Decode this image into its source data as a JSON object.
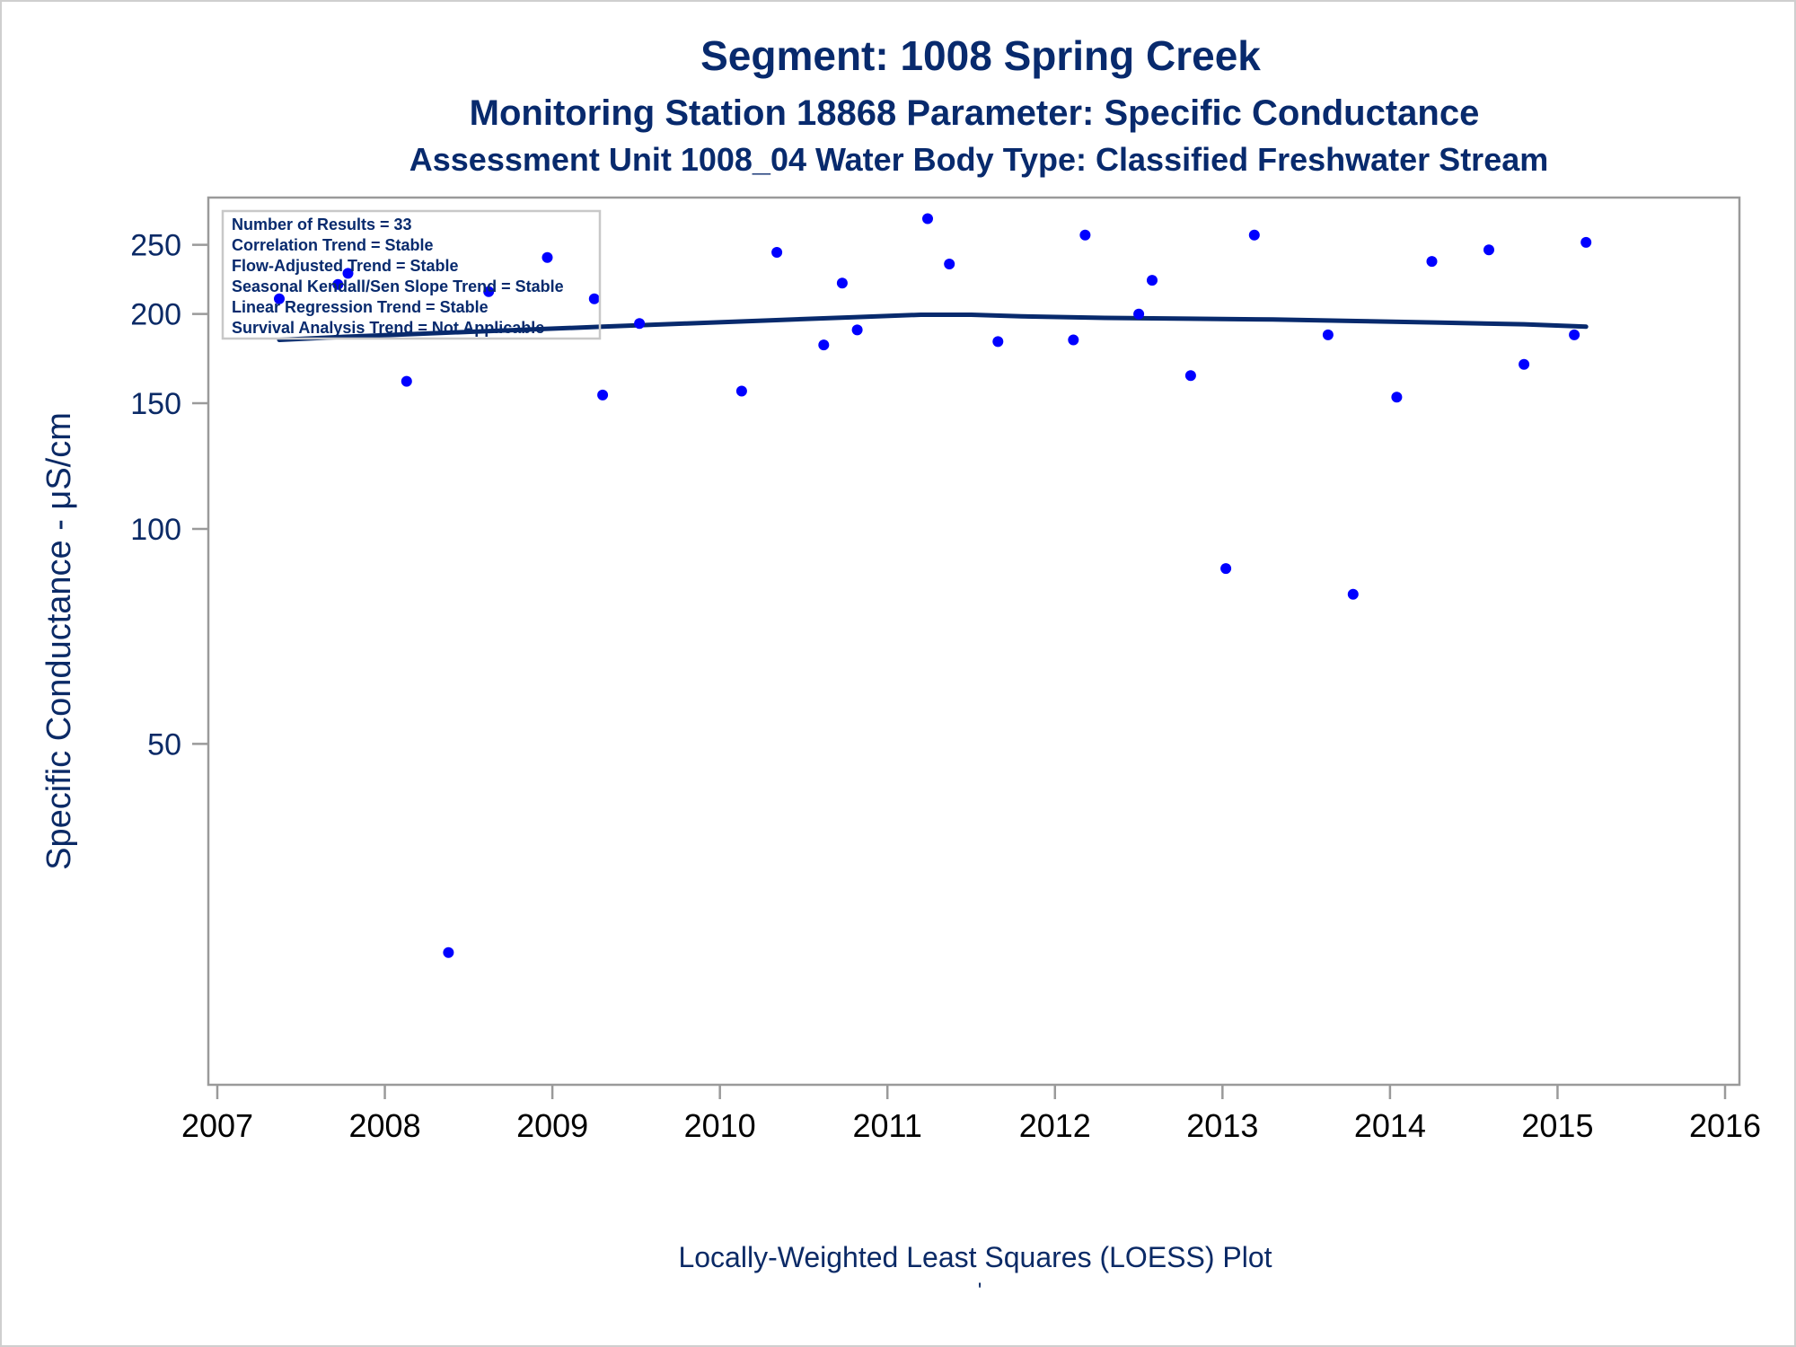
{
  "chart_data": {
    "type": "scatter",
    "title": "Segment: 1008  Spring Creek",
    "subtitle": "Monitoring Station 18868 Parameter: Specific Conductance",
    "subtitle2": "Assessment Unit 1008_04   Water Body Type: Classified Freshwater Stream",
    "ylabel": "Specific Conductance -  μS/cm",
    "footnote": "Locally-Weighted Least Squares (LOESS) Plot",
    "footnote_mark": "'",
    "y_scale": "log",
    "x_range": [
      2007,
      2016
    ],
    "y_range": [
      25,
      290
    ],
    "x_ticks": [
      "2007",
      "2008",
      "2009",
      "2010",
      "2011",
      "2012",
      "2013",
      "2014",
      "2015",
      "2016"
    ],
    "y_ticks": [
      "50",
      "100",
      "150",
      "200",
      "250"
    ],
    "inset": [
      "Number of Results = 33",
      "Correlation Trend = Stable",
      "Flow-Adjusted Trend = Stable",
      "Seasonal Kendall/Sen Slope Trend = Stable",
      "Linear Regression Trend = Stable",
      "Survival Analysis Trend = Not Applicable"
    ],
    "points": [
      {
        "x": 2007.37,
        "y": 210
      },
      {
        "x": 2007.72,
        "y": 220
      },
      {
        "x": 2007.78,
        "y": 228
      },
      {
        "x": 2008.13,
        "y": 161
      },
      {
        "x": 2008.38,
        "y": 25.5
      },
      {
        "x": 2008.62,
        "y": 215
      },
      {
        "x": 2008.97,
        "y": 240
      },
      {
        "x": 2009.25,
        "y": 210
      },
      {
        "x": 2009.3,
        "y": 154
      },
      {
        "x": 2009.52,
        "y": 194
      },
      {
        "x": 2010.13,
        "y": 156
      },
      {
        "x": 2010.34,
        "y": 244
      },
      {
        "x": 2010.62,
        "y": 181
      },
      {
        "x": 2010.73,
        "y": 221
      },
      {
        "x": 2010.82,
        "y": 190
      },
      {
        "x": 2011.24,
        "y": 272
      },
      {
        "x": 2011.37,
        "y": 235
      },
      {
        "x": 2011.66,
        "y": 183
      },
      {
        "x": 2012.11,
        "y": 184
      },
      {
        "x": 2012.18,
        "y": 258
      },
      {
        "x": 2012.5,
        "y": 200
      },
      {
        "x": 2012.58,
        "y": 223
      },
      {
        "x": 2012.81,
        "y": 164
      },
      {
        "x": 2013.02,
        "y": 88
      },
      {
        "x": 2013.19,
        "y": 258
      },
      {
        "x": 2013.63,
        "y": 187
      },
      {
        "x": 2013.78,
        "y": 81
      },
      {
        "x": 2014.04,
        "y": 153
      },
      {
        "x": 2014.25,
        "y": 237
      },
      {
        "x": 2014.59,
        "y": 246
      },
      {
        "x": 2014.8,
        "y": 170
      },
      {
        "x": 2015.1,
        "y": 187
      },
      {
        "x": 2015.17,
        "y": 252
      }
    ],
    "loess": {
      "x": [
        2007.37,
        2007.8,
        2008.3,
        2008.8,
        2009.3,
        2009.8,
        2010.3,
        2010.8,
        2011.2,
        2011.5,
        2011.8,
        2012.3,
        2012.8,
        2013.3,
        2013.8,
        2014.3,
        2014.8,
        2015.17
      ],
      "y": [
        184,
        186,
        188,
        190,
        192,
        194,
        196,
        198,
        199.5,
        199.5,
        198.5,
        197.5,
        197,
        196.5,
        195.5,
        194.5,
        193.5,
        192
      ]
    },
    "colors": {
      "title": "#082a6d",
      "text": "#0b2a66",
      "marker": "#0000ff",
      "loess": "#082a6d",
      "axis": "#9a9a9a"
    }
  }
}
